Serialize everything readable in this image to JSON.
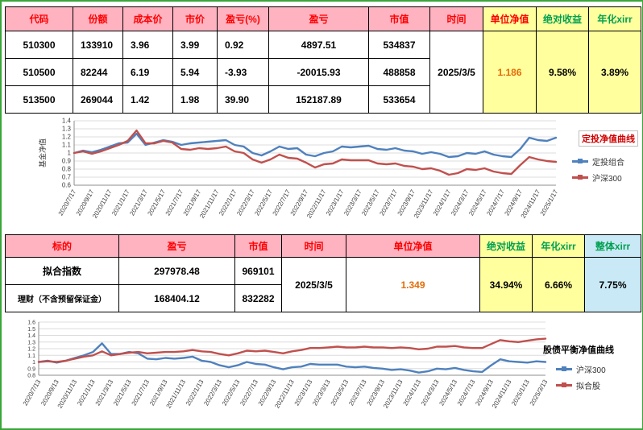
{
  "colors": {
    "header_pink": "#ffb3c1",
    "header_red_text": "#ff0000",
    "highlight_yellow": "#ffff9e",
    "highlight_cyan": "#c9e9f6",
    "green_text": "#00a050",
    "orange_value": "#e36c09",
    "grid_green": "#3aa63a",
    "series_blue": "#4f81bd",
    "series_red": "#c0504d"
  },
  "table1": {
    "headers": {
      "code": "代码",
      "shares": "份额",
      "cost": "成本价",
      "price": "市价",
      "pnl_pct": "盈亏(%)",
      "pnl": "盈亏",
      "mv": "市值",
      "time": "时间",
      "nav": "单位净值",
      "abs_return": "绝对收益",
      "xirr": "年化xirr"
    },
    "rows": [
      {
        "code": "510300",
        "shares": "133910",
        "cost": "3.96",
        "price": "3.99",
        "pnl_pct": "0.92",
        "pnl": "4897.51",
        "mv": "534837"
      },
      {
        "code": "510500",
        "shares": "82244",
        "cost": "6.19",
        "price": "5.94",
        "pnl_pct": "-3.93",
        "pnl": "-20015.93",
        "mv": "488858"
      },
      {
        "code": "513500",
        "shares": "269044",
        "cost": "1.42",
        "price": "1.98",
        "pnl_pct": "39.90",
        "pnl": "152187.89",
        "mv": "533654"
      }
    ],
    "merged": {
      "time": "2025/3/5",
      "nav": "1.186",
      "abs_return": "9.58%",
      "xirr": "3.89%"
    }
  },
  "table2": {
    "headers": {
      "target": "标的",
      "pnl": "盈亏",
      "mv": "市值",
      "time": "时间",
      "nav": "单位净值",
      "abs_return": "绝对收益",
      "xirr": "年化xirr",
      "total_xirr": "整体xirr"
    },
    "rows": [
      {
        "target": "拟合指数",
        "pnl": "297978.48",
        "mv": "969101"
      },
      {
        "target": "理财（不含预留保证金）",
        "pnl": "168404.12",
        "mv": "832282"
      }
    ],
    "merged": {
      "time": "2025/3/5",
      "nav": "1.349",
      "abs_return": "34.94%",
      "xirr": "6.66%",
      "total_xirr": "7.75%"
    }
  },
  "chart_data": [
    {
      "type": "line",
      "title": "定投净值曲线",
      "ylabel": "基金净值",
      "ylim": [
        0.6,
        1.4
      ],
      "ytick_labels": [
        "1.4",
        "1.3",
        "1.2",
        "1.1",
        "1",
        "0.9",
        "0.8",
        "0.7",
        "0.6"
      ],
      "grid": true,
      "legend_position": "right",
      "x_tick_labels": [
        "2020/7/17",
        "2020/9/17",
        "2020/11/17",
        "2021/1/17",
        "2021/3/17",
        "2021/5/17",
        "2021/7/17",
        "2021/9/17",
        "2021/11/17",
        "2022/1/17",
        "2022/3/17",
        "2022/5/17",
        "2022/7/17",
        "2022/9/17",
        "2022/11/17",
        "2023/1/17",
        "2023/3/17",
        "2023/5/17",
        "2023/7/17",
        "2023/9/17",
        "2023/11/17",
        "2024/1/17",
        "2024/3/17",
        "2024/5/17",
        "2024/7/17",
        "2024/9/17",
        "2024/11/17",
        "2025/1/17"
      ],
      "series": [
        {
          "name": "定投组合",
          "color": "#4f81bd",
          "values": [
            1.0,
            1.03,
            1.01,
            1.04,
            1.08,
            1.12,
            1.13,
            1.24,
            1.1,
            1.13,
            1.16,
            1.14,
            1.1,
            1.12,
            1.13,
            1.14,
            1.15,
            1.16,
            1.1,
            1.08,
            1.0,
            0.97,
            1.02,
            1.08,
            1.05,
            1.06,
            0.98,
            0.96,
            1.0,
            1.02,
            1.08,
            1.07,
            1.08,
            1.09,
            1.05,
            1.04,
            1.06,
            1.03,
            1.02,
            0.99,
            1.01,
            0.99,
            0.95,
            0.96,
            1.0,
            0.99,
            1.02,
            0.98,
            0.96,
            0.95,
            1.05,
            1.19,
            1.16,
            1.15,
            1.19
          ]
        },
        {
          "name": "沪深300",
          "color": "#c0504d",
          "values": [
            1.0,
            1.02,
            0.99,
            1.02,
            1.06,
            1.1,
            1.15,
            1.28,
            1.12,
            1.12,
            1.15,
            1.13,
            1.05,
            1.04,
            1.06,
            1.05,
            1.06,
            1.08,
            1.02,
            1.0,
            0.92,
            0.88,
            0.92,
            0.98,
            0.94,
            0.93,
            0.88,
            0.82,
            0.86,
            0.87,
            0.92,
            0.91,
            0.91,
            0.91,
            0.87,
            0.86,
            0.87,
            0.84,
            0.83,
            0.8,
            0.81,
            0.78,
            0.73,
            0.75,
            0.8,
            0.79,
            0.81,
            0.77,
            0.75,
            0.74,
            0.85,
            0.95,
            0.92,
            0.9,
            0.89
          ]
        }
      ]
    },
    {
      "type": "line",
      "title": "股债平衡净值曲线",
      "ylabel": "",
      "ylim": [
        0.8,
        1.6
      ],
      "ytick_labels": [
        "1.6",
        "1.5",
        "1.4",
        "1.3",
        "1.2",
        "1.1",
        "1",
        "0.9",
        "0.8"
      ],
      "grid": true,
      "legend_position": "right",
      "x_tick_labels": [
        "2020/7/13",
        "2020/9/13",
        "2020/11/13",
        "2021/1/13",
        "2021/3/13",
        "2021/5/13",
        "2021/7/13",
        "2021/9/13",
        "2021/11/13",
        "2022/1/13",
        "2022/3/13",
        "2022/5/13",
        "2022/7/13",
        "2022/9/13",
        "2022/11/13",
        "2023/1/13",
        "2023/3/13",
        "2023/5/13",
        "2023/7/13",
        "2023/9/13",
        "2023/11/13",
        "2024/1/13",
        "2024/3/13",
        "2024/5/13",
        "2024/7/13",
        "2024/9/13",
        "2024/11/13",
        "2025/1/13",
        "2025/3/13"
      ],
      "series": [
        {
          "name": "沪深300",
          "color": "#4f81bd",
          "values": [
            1.0,
            1.02,
            0.99,
            1.02,
            1.06,
            1.1,
            1.15,
            1.28,
            1.12,
            1.12,
            1.15,
            1.13,
            1.05,
            1.04,
            1.06,
            1.05,
            1.06,
            1.08,
            1.02,
            1.0,
            0.95,
            0.92,
            0.95,
            1.0,
            0.97,
            0.96,
            0.92,
            0.89,
            0.92,
            0.93,
            0.97,
            0.96,
            0.96,
            0.96,
            0.93,
            0.92,
            0.93,
            0.91,
            0.9,
            0.88,
            0.89,
            0.87,
            0.84,
            0.86,
            0.9,
            0.89,
            0.91,
            0.88,
            0.86,
            0.85,
            0.95,
            1.04,
            1.01,
            1.0,
            0.99,
            1.01,
            1.0
          ]
        },
        {
          "name": "拟合股",
          "color": "#c0504d",
          "values": [
            1.0,
            1.01,
            1.0,
            1.02,
            1.05,
            1.08,
            1.1,
            1.16,
            1.1,
            1.12,
            1.14,
            1.15,
            1.13,
            1.14,
            1.15,
            1.15,
            1.16,
            1.18,
            1.16,
            1.15,
            1.12,
            1.1,
            1.13,
            1.17,
            1.16,
            1.17,
            1.15,
            1.13,
            1.16,
            1.18,
            1.21,
            1.21,
            1.22,
            1.23,
            1.22,
            1.22,
            1.23,
            1.22,
            1.22,
            1.21,
            1.22,
            1.21,
            1.19,
            1.2,
            1.23,
            1.23,
            1.24,
            1.22,
            1.21,
            1.21,
            1.27,
            1.33,
            1.31,
            1.3,
            1.32,
            1.34,
            1.35
          ]
        }
      ]
    }
  ]
}
